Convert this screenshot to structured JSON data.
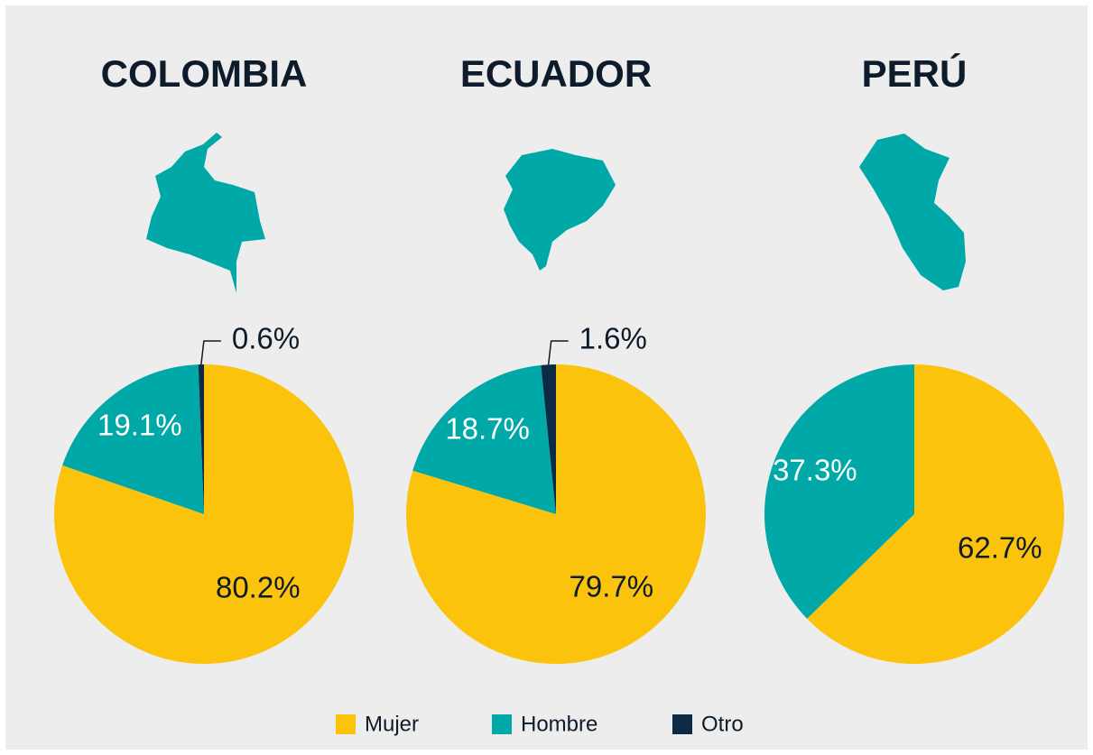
{
  "chart_data": [
    {
      "type": "pie",
      "title": "COLOMBIA",
      "categories": [
        "Mujer",
        "Hombre",
        "Otro"
      ],
      "values": [
        80.2,
        19.1,
        0.6
      ],
      "value_labels": [
        "80.2%",
        "19.1%",
        "0.6%"
      ],
      "colors": [
        "#fbc30c",
        "#00a8a8",
        "#0d2a45"
      ]
    },
    {
      "type": "pie",
      "title": "ECUADOR",
      "categories": [
        "Mujer",
        "Hombre",
        "Otro"
      ],
      "values": [
        79.7,
        18.7,
        1.6
      ],
      "value_labels": [
        "79.7%",
        "18.7%",
        "1.6%"
      ],
      "colors": [
        "#fbc30c",
        "#00a8a8",
        "#0d2a45"
      ]
    },
    {
      "type": "pie",
      "title": "PERÚ",
      "categories": [
        "Mujer",
        "Hombre"
      ],
      "values": [
        62.7,
        37.3
      ],
      "value_labels": [
        "62.7%",
        "37.3%"
      ],
      "colors": [
        "#fbc30c",
        "#00a8a8"
      ]
    }
  ]
}
